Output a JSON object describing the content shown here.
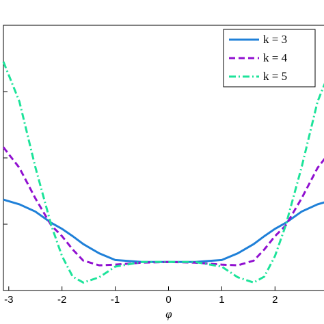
{
  "chart_data": {
    "type": "line",
    "x_label": "φ",
    "x": [
      -3.1,
      -2.8,
      -2.5,
      -2.2,
      -2,
      -1.8,
      -1.6,
      -1.3,
      -1,
      -0.5,
      0,
      0.5,
      1,
      1.3,
      1.6,
      1.8,
      2,
      2.2,
      2.5,
      2.8,
      3.1
    ],
    "series": [
      {
        "name": "k = 3",
        "color": "#1f80d8",
        "dash": "solid",
        "values": [
          1.37,
          1.3,
          1.19,
          1.02,
          0.93,
          0.82,
          0.7,
          0.56,
          0.46,
          0.43,
          0.43,
          0.43,
          0.46,
          0.56,
          0.7,
          0.82,
          0.93,
          1.02,
          1.19,
          1.3,
          1.37
        ]
      },
      {
        "name": "k = 4",
        "color": "#9010d0",
        "dash": "dashed",
        "values": [
          2.16,
          1.85,
          1.39,
          0.98,
          0.82,
          0.62,
          0.45,
          0.38,
          0.39,
          0.42,
          0.43,
          0.42,
          0.39,
          0.38,
          0.45,
          0.62,
          0.82,
          0.98,
          1.39,
          1.85,
          2.16
        ]
      },
      {
        "name": "k = 5",
        "color": "#1de39a",
        "dash": "dashdot",
        "values": [
          3.45,
          2.85,
          1.86,
          0.98,
          0.52,
          0.21,
          0.12,
          0.2,
          0.36,
          0.43,
          0.43,
          0.43,
          0.36,
          0.2,
          0.12,
          0.21,
          0.52,
          0.98,
          1.86,
          2.85,
          3.45
        ]
      }
    ],
    "xlim": [
      -3.1,
      3.1
    ],
    "xticks": [
      -3,
      -2,
      -1,
      0,
      1,
      2
    ],
    "ylim": [
      0,
      4
    ],
    "yticks": [
      1,
      2,
      3
    ],
    "legend": "upper right"
  }
}
